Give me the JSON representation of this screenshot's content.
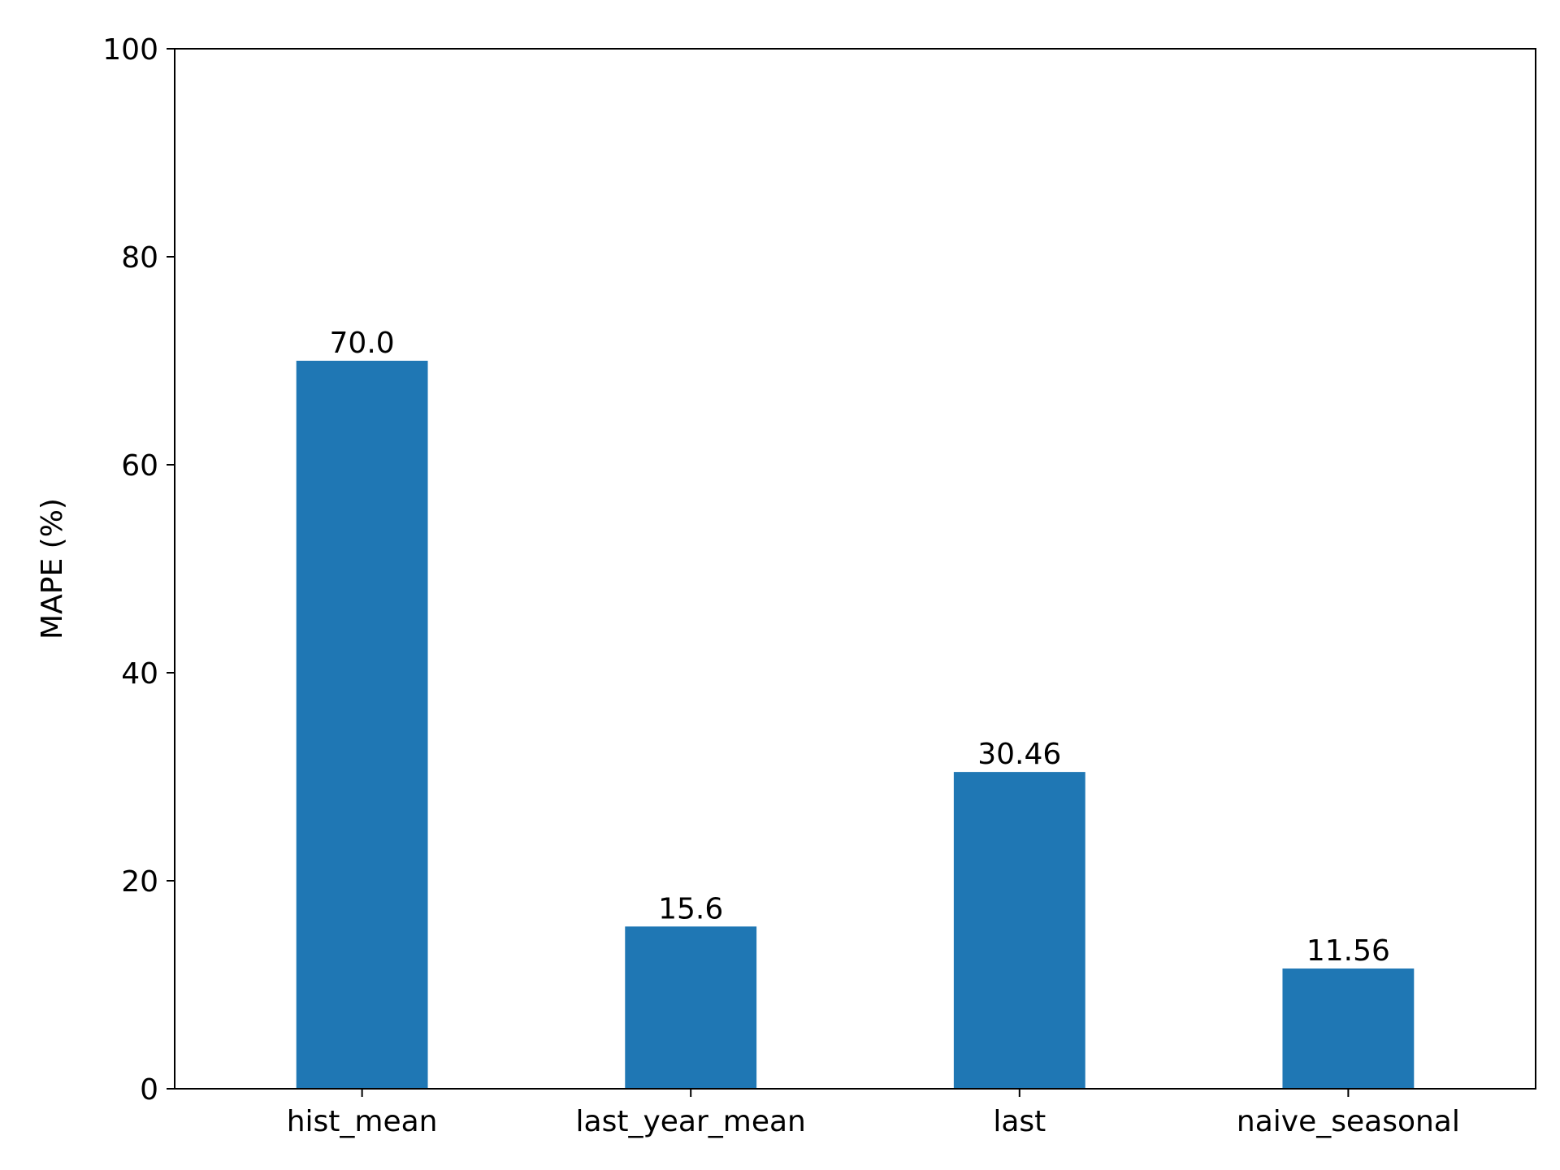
{
  "chart_data": {
    "type": "bar",
    "title": "",
    "xlabel": "",
    "ylabel": "MAPE (%)",
    "categories": [
      "hist_mean",
      "last_year_mean",
      "last",
      "naive_seasonal"
    ],
    "values": [
      70.0,
      15.6,
      30.46,
      11.56
    ],
    "value_labels": [
      "70.0",
      "15.6",
      "30.46",
      "11.56"
    ],
    "ylim": [
      0,
      100
    ],
    "yticks": [
      0,
      20,
      40,
      60,
      80,
      100
    ],
    "ytick_labels": [
      "0",
      "20",
      "40",
      "60",
      "80",
      "100"
    ],
    "bar_color": "#1f77b4",
    "grid": false,
    "legend": "none"
  }
}
